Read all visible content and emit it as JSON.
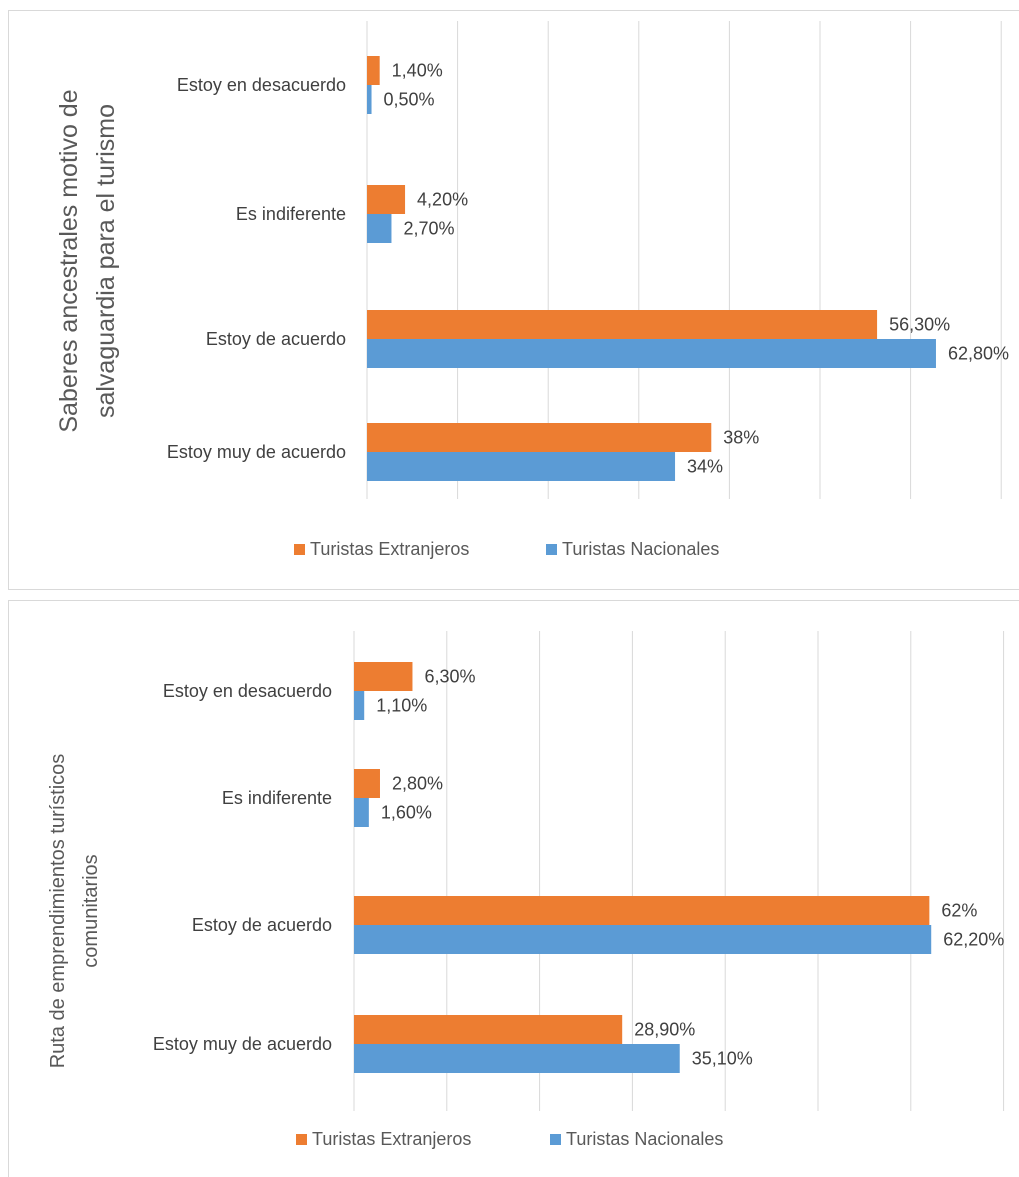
{
  "colors": {
    "extranjeros": "#ED7D31",
    "nacionales": "#5B9BD5"
  },
  "chart_data": [
    {
      "type": "bar",
      "orientation": "horizontal",
      "ylabel": "Saberes ancestrales motivo de salvaguardia para el turismo",
      "ylabel_lines": [
        "Saberes ancestrales motivo de",
        "salvaguardia para el turismo"
      ],
      "categories": [
        "Estoy en desacuerdo",
        "Es indiferente",
        "Estoy de acuerdo",
        "Estoy muy de acuerdo"
      ],
      "series": [
        {
          "name": "Turistas Extranjeros",
          "values": [
            1.4,
            4.2,
            56.3,
            38
          ],
          "labels": [
            "1,40%",
            "4,20%",
            "56,30%",
            "38%"
          ]
        },
        {
          "name": "Turistas Nacionales",
          "values": [
            0.5,
            2.7,
            62.8,
            34
          ],
          "labels": [
            "0,50%",
            "2,70%",
            "62,80%",
            "34%"
          ]
        }
      ],
      "xlim": [
        0,
        70
      ],
      "grid": true,
      "legend": "bottom"
    },
    {
      "type": "bar",
      "orientation": "horizontal",
      "ylabel": "Ruta de emprendimientos turísticos comunitarios",
      "ylabel_lines": [
        "Ruta de emprendimientos turísticos",
        "comunitarios"
      ],
      "categories": [
        "Estoy en desacuerdo",
        "Es indiferente",
        "Estoy de acuerdo",
        "Estoy muy de acuerdo"
      ],
      "series": [
        {
          "name": "Turistas Extranjeros",
          "values": [
            6.3,
            2.8,
            62,
            28.9
          ],
          "labels": [
            "6,30%",
            "2,80%",
            "62%",
            "28,90%"
          ]
        },
        {
          "name": "Turistas Nacionales",
          "values": [
            1.1,
            1.6,
            62.2,
            35.1
          ],
          "labels": [
            "1,10%",
            "1,60%",
            "62,20%",
            "35,10%"
          ]
        }
      ],
      "xlim": [
        0,
        70
      ],
      "grid": true,
      "legend": "bottom"
    }
  ]
}
